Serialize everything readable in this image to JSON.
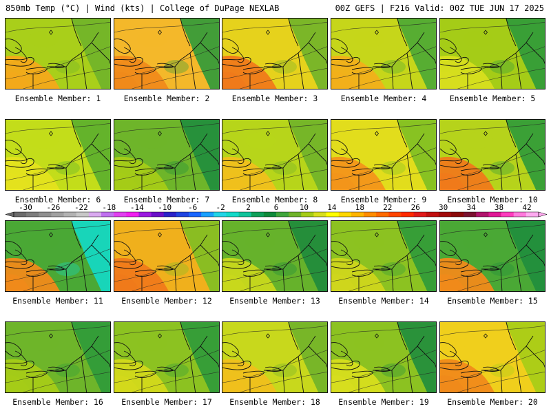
{
  "header": {
    "left_title": "850mb Temp (°C) | Wind (kts) | College of DuPage NEXLAB",
    "right_title": "00Z GEFS | F216 Valid: 00Z TUE JUN 17 2025"
  },
  "panels": [
    {
      "label": "Ensemble Member: 1",
      "base": "#a9cf1a",
      "warm": "#f3a91a",
      "cool": "#6fb22a"
    },
    {
      "label": "Ensemble Member: 2",
      "base": "#f4b82a",
      "warm": "#f08a1a",
      "cool": "#2f9a3a"
    },
    {
      "label": "Ensemble Member: 3",
      "base": "#e6d21c",
      "warm": "#f07a1a",
      "cool": "#6fb22a"
    },
    {
      "label": "Ensemble Member: 4",
      "base": "#c6d61a",
      "warm": "#f2b01a",
      "cool": "#4aa835"
    },
    {
      "label": "Ensemble Member: 5",
      "base": "#a5cc17",
      "warm": "#d7de1e",
      "cool": "#2e9a3a"
    },
    {
      "label": "Ensemble Member: 6",
      "base": "#c3dd1a",
      "warm": "#e4e21d",
      "cool": "#5aae2e"
    },
    {
      "label": "Ensemble Member: 7",
      "base": "#6eb52a",
      "warm": "#a5cc17",
      "cool": "#1f8d3d"
    },
    {
      "label": "Ensemble Member: 8",
      "base": "#b7d51a",
      "warm": "#f0c01c",
      "cool": "#6fb22a"
    },
    {
      "label": "Ensemble Member: 9",
      "base": "#e2dd1c",
      "warm": "#f3951a",
      "cool": "#7ebf24"
    },
    {
      "label": "Ensemble Member: 10",
      "base": "#b6d31b",
      "warm": "#f07a1a",
      "cool": "#2e9a3a"
    },
    {
      "label": "Ensemble Member: 11",
      "base": "#4aa835",
      "warm": "#f08a1a",
      "cool": "#13d9c8"
    },
    {
      "label": "Ensemble Member: 12",
      "base": "#f0b01c",
      "warm": "#f07a1a",
      "cool": "#7ebf24"
    },
    {
      "label": "Ensemble Member: 13",
      "base": "#66b22b",
      "warm": "#c8d81c",
      "cool": "#1e8a3c"
    },
    {
      "label": "Ensemble Member: 14",
      "base": "#8cc221",
      "warm": "#cfd61c",
      "cool": "#2e9a3a"
    },
    {
      "label": "Ensemble Member: 15",
      "base": "#4aa835",
      "warm": "#f08a1a",
      "cool": "#1f8d3d"
    },
    {
      "label": "Ensemble Member: 16",
      "base": "#6eb52a",
      "warm": "#a5cc17",
      "cool": "#2e9a3a"
    },
    {
      "label": "Ensemble Member: 17",
      "base": "#8cc221",
      "warm": "#d3d91b",
      "cool": "#2e9a3a"
    },
    {
      "label": "Ensemble Member: 18",
      "base": "#c8d81c",
      "warm": "#f0c01c",
      "cool": "#6fb22a"
    },
    {
      "label": "Ensemble Member: 19",
      "base": "#8cc221",
      "warm": "#d7de1e",
      "cool": "#1f8d3d"
    },
    {
      "label": "Ensemble Member: 20",
      "base": "#f0cf1c",
      "warm": "#f08a1a",
      "cool": "#a5cc17"
    }
  ],
  "colorbar": {
    "tick_labels": [
      "-30",
      "-26",
      "-22",
      "-18",
      "-14",
      "-10",
      "-6",
      "-2",
      "2",
      "6",
      "10",
      "14",
      "18",
      "22",
      "26",
      "30",
      "34",
      "38",
      "42"
    ],
    "colors": [
      "#6b6b6b",
      "#7c7c7c",
      "#8f8f8f",
      "#a0a0a0",
      "#b2b2b2",
      "#c7c7c7",
      "#d9a9f0",
      "#c070f0",
      "#e040f0",
      "#f020f0",
      "#9a1ae0",
      "#6a10c8",
      "#2a22c8",
      "#1f44e0",
      "#1a66ff",
      "#1aa0ff",
      "#22d4e6",
      "#13d9c8",
      "#11c39a",
      "#0f9f59",
      "#0f8a3a",
      "#3fa53b",
      "#6fb22a",
      "#a5cc17",
      "#d7de1e",
      "#ffff00",
      "#ffd700",
      "#ffb400",
      "#ff8c00",
      "#ff6a00",
      "#ff4500",
      "#ff2a00",
      "#e01a1a",
      "#c01010",
      "#a00a0a",
      "#8a0a0a",
      "#7a1230",
      "#b0146c",
      "#e01896",
      "#ff3cbe",
      "#ff78dc",
      "#ffaaf0"
    ]
  }
}
